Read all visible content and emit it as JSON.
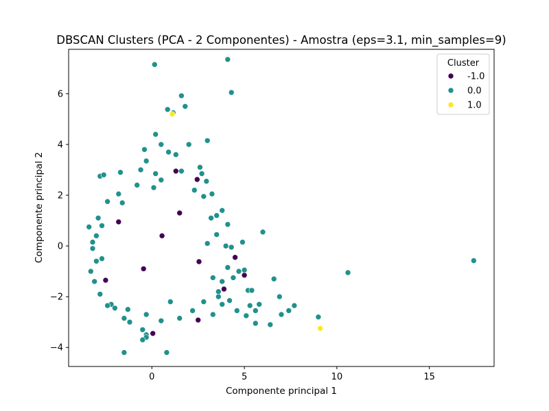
{
  "chart_data": {
    "type": "scatter",
    "title": "DBSCAN Clusters (PCA - 2 Componentes) - Amostra (eps=3.1, min_samples=9)",
    "xlabel": "Componente principal 1",
    "ylabel": "Componente principal 2",
    "xlim": [
      -4.5,
      18.5
    ],
    "ylim": [
      -4.75,
      7.75
    ],
    "x_ticks": [
      0,
      5,
      10,
      15
    ],
    "y_ticks": [
      -4,
      -2,
      0,
      2,
      4,
      6
    ],
    "grid": false,
    "legend": {
      "title": "Cluster",
      "placement": "top-right",
      "entries": [
        {
          "label": "-1.0",
          "color": "#440154"
        },
        {
          "label": "0.0",
          "color": "#21918c"
        },
        {
          "label": "1.0",
          "color": "#fde725"
        }
      ]
    },
    "series": [
      {
        "name": "-1.0",
        "color": "#440154",
        "points": [
          [
            1.3,
            2.95
          ],
          [
            2.45,
            2.62
          ],
          [
            1.5,
            1.3
          ],
          [
            -1.8,
            0.95
          ],
          [
            0.55,
            0.4
          ],
          [
            -0.45,
            -0.9
          ],
          [
            2.55,
            -0.62
          ],
          [
            4.5,
            -0.45
          ],
          [
            -2.5,
            -1.35
          ],
          [
            5.0,
            -1.15
          ],
          [
            3.9,
            -1.7
          ],
          [
            0.05,
            -3.45
          ],
          [
            2.5,
            -2.92
          ]
        ]
      },
      {
        "name": "0.0",
        "color": "#21918c",
        "points": [
          [
            0.15,
            7.15
          ],
          [
            4.1,
            7.35
          ],
          [
            4.3,
            6.05
          ],
          [
            1.6,
            5.92
          ],
          [
            1.8,
            5.5
          ],
          [
            0.85,
            5.38
          ],
          [
            1.15,
            5.25
          ],
          [
            0.2,
            4.4
          ],
          [
            3.0,
            4.15
          ],
          [
            2.0,
            4.0
          ],
          [
            0.5,
            4.0
          ],
          [
            -0.4,
            3.8
          ],
          [
            0.9,
            3.7
          ],
          [
            1.3,
            3.6
          ],
          [
            -0.3,
            3.35
          ],
          [
            2.6,
            3.1
          ],
          [
            1.6,
            2.95
          ],
          [
            -0.6,
            3.0
          ],
          [
            0.2,
            2.85
          ],
          [
            2.7,
            2.85
          ],
          [
            -2.8,
            2.75
          ],
          [
            -1.7,
            2.9
          ],
          [
            0.5,
            2.6
          ],
          [
            2.95,
            2.55
          ],
          [
            -0.8,
            2.4
          ],
          [
            -2.6,
            2.8
          ],
          [
            0.1,
            2.3
          ],
          [
            2.3,
            2.2
          ],
          [
            3.25,
            2.05
          ],
          [
            -1.8,
            2.05
          ],
          [
            2.8,
            1.95
          ],
          [
            3.8,
            1.4
          ],
          [
            3.5,
            1.2
          ],
          [
            -2.4,
            1.75
          ],
          [
            -1.6,
            1.7
          ],
          [
            3.2,
            1.1
          ],
          [
            4.1,
            0.85
          ],
          [
            6.0,
            0.55
          ],
          [
            3.5,
            0.45
          ],
          [
            4.9,
            0.15
          ],
          [
            3.0,
            0.1
          ],
          [
            4.0,
            0.0
          ],
          [
            4.3,
            -0.05
          ],
          [
            5.0,
            -0.95
          ],
          [
            4.1,
            -0.85
          ],
          [
            3.3,
            -1.25
          ],
          [
            3.8,
            -1.4
          ],
          [
            4.4,
            -1.25
          ],
          [
            4.7,
            -1.0
          ],
          [
            3.6,
            -2.0
          ],
          [
            4.2,
            -2.15
          ],
          [
            5.2,
            -1.75
          ],
          [
            5.4,
            -1.75
          ],
          [
            6.6,
            -1.3
          ],
          [
            3.8,
            -2.3
          ],
          [
            5.3,
            -2.35
          ],
          [
            5.8,
            -2.3
          ],
          [
            4.6,
            -2.55
          ],
          [
            5.1,
            -2.75
          ],
          [
            5.6,
            -2.55
          ],
          [
            6.9,
            -2.0
          ],
          [
            7.0,
            -2.7
          ],
          [
            7.4,
            -2.55
          ],
          [
            7.7,
            -2.35
          ],
          [
            6.4,
            -3.1
          ],
          [
            5.6,
            -3.05
          ],
          [
            3.3,
            -2.7
          ],
          [
            9.0,
            -2.8
          ],
          [
            10.6,
            -1.05
          ],
          [
            17.4,
            -0.58
          ],
          [
            -1.5,
            -2.85
          ],
          [
            -0.3,
            -2.7
          ],
          [
            0.5,
            -2.95
          ],
          [
            -1.2,
            -3.0
          ],
          [
            -0.5,
            -3.3
          ],
          [
            -0.3,
            -3.5
          ],
          [
            -0.3,
            -3.6
          ],
          [
            -0.5,
            -3.7
          ],
          [
            0.8,
            -4.2
          ],
          [
            -1.5,
            -4.2
          ],
          [
            1.5,
            -2.85
          ],
          [
            2.2,
            -2.55
          ],
          [
            -2.8,
            -1.9
          ],
          [
            -2.2,
            -2.3
          ],
          [
            -1.3,
            -2.5
          ],
          [
            -2.4,
            -2.35
          ],
          [
            -2.0,
            -2.45
          ],
          [
            1.0,
            -2.2
          ],
          [
            2.8,
            -2.2
          ],
          [
            3.6,
            -1.8
          ],
          [
            -3.2,
            -0.1
          ],
          [
            -3.4,
            0.75
          ],
          [
            -3.0,
            -0.6
          ],
          [
            -3.1,
            -1.4
          ],
          [
            -3.3,
            -1.0
          ],
          [
            -2.9,
            1.1
          ],
          [
            -3.0,
            0.4
          ],
          [
            -3.2,
            0.15
          ],
          [
            -2.7,
            0.8
          ],
          [
            -2.7,
            -0.5
          ]
        ]
      },
      {
        "name": "1.0",
        "color": "#fde725",
        "points": [
          [
            1.1,
            5.2
          ],
          [
            9.1,
            -3.25
          ]
        ]
      }
    ]
  }
}
